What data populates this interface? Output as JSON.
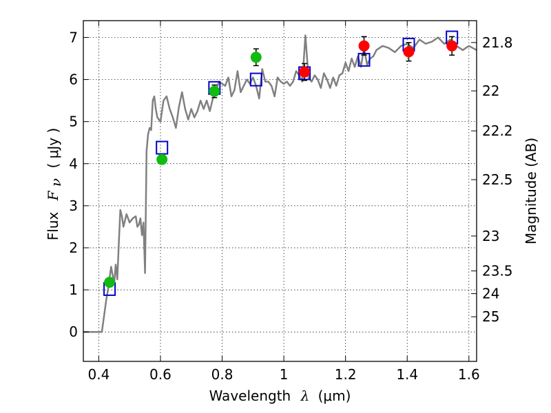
{
  "chart_data": {
    "type": "scatter",
    "xlabel": {
      "text": "Wavelength",
      "symbol": "λ",
      "unit": "(μm)"
    },
    "ylabel": {
      "text": "Flux",
      "symbol": "F",
      "subscript": "ν",
      "unit": "( μJy )"
    },
    "y2label": "Magnitude (AB)",
    "xlim": [
      0.35,
      1.625
    ],
    "ylim": [
      -0.7,
      7.4
    ],
    "xticks": [
      0.4,
      0.6,
      0.8,
      1,
      1.2,
      1.4,
      1.6
    ],
    "xtick_labels": [
      "0.4",
      "0.6",
      "0.8",
      "1",
      "1.2",
      "1.4",
      "1.6"
    ],
    "yticks": [
      0,
      1,
      2,
      3,
      4,
      5,
      6,
      7
    ],
    "ytick_labels": [
      "0",
      "1",
      "2",
      "3",
      "4",
      "5",
      "6",
      "7"
    ],
    "y2ticks": [
      {
        "label": "21.8",
        "flux": 6.88
      },
      {
        "label": "22",
        "flux": 5.73
      },
      {
        "label": "22.2",
        "flux": 4.78
      },
      {
        "label": "22.5",
        "flux": 3.62
      },
      {
        "label": "23",
        "flux": 2.28
      },
      {
        "label": "23.5",
        "flux": 1.45
      },
      {
        "label": "24",
        "flux": 0.91
      },
      {
        "label": "25",
        "flux": 0.36
      }
    ],
    "grid": true,
    "colors": {
      "model": "#808080",
      "green": "#11bb11",
      "red": "#ff0000",
      "box": "#0000cc",
      "errorbar": "#000000"
    },
    "series": [
      {
        "style": "line",
        "x": [
          0.35,
          0.41,
          0.425,
          0.43,
          0.44,
          0.45,
          0.455,
          0.46,
          0.465,
          0.47,
          0.475,
          0.48,
          0.49,
          0.5,
          0.51,
          0.52,
          0.525,
          0.53,
          0.535,
          0.54,
          0.545,
          0.55,
          0.555,
          0.56,
          0.565,
          0.57,
          0.575,
          0.58,
          0.585,
          0.59,
          0.6,
          0.61,
          0.62,
          0.63,
          0.64,
          0.65,
          0.66,
          0.67,
          0.68,
          0.69,
          0.7,
          0.71,
          0.72,
          0.73,
          0.74,
          0.75,
          0.76,
          0.77,
          0.78,
          0.79,
          0.8,
          0.81,
          0.82,
          0.83,
          0.84,
          0.85,
          0.86,
          0.87,
          0.88,
          0.89,
          0.9,
          0.91,
          0.92,
          0.93,
          0.94,
          0.95,
          0.96,
          0.97,
          0.98,
          0.99,
          1.0,
          1.01,
          1.02,
          1.03,
          1.04,
          1.05,
          1.06,
          1.07,
          1.08,
          1.09,
          1.1,
          1.11,
          1.12,
          1.13,
          1.14,
          1.15,
          1.16,
          1.17,
          1.18,
          1.19,
          1.2,
          1.21,
          1.22,
          1.23,
          1.24,
          1.25,
          1.26,
          1.27,
          1.28,
          1.29,
          1.3,
          1.32,
          1.34,
          1.36,
          1.38,
          1.4,
          1.42,
          1.44,
          1.46,
          1.48,
          1.5,
          1.52,
          1.54,
          1.56,
          1.58,
          1.6,
          1.625
        ],
        "y": [
          0,
          0,
          0.8,
          1.0,
          1.55,
          1.15,
          1.6,
          1.25,
          2.1,
          2.9,
          2.75,
          2.5,
          2.8,
          2.6,
          2.7,
          2.75,
          2.5,
          2.55,
          2.7,
          2.3,
          2.6,
          1.4,
          4.3,
          4.7,
          4.85,
          4.8,
          5.5,
          5.6,
          5.3,
          5.1,
          5.0,
          5.5,
          5.6,
          5.3,
          5.1,
          4.85,
          5.35,
          5.7,
          5.3,
          5.05,
          5.3,
          5.1,
          5.25,
          5.5,
          5.3,
          5.5,
          5.25,
          5.55,
          5.75,
          5.95,
          5.9,
          5.85,
          6.05,
          5.6,
          5.75,
          6.2,
          5.7,
          5.85,
          6.0,
          5.9,
          6.05,
          5.85,
          5.55,
          6.25,
          5.95,
          5.95,
          5.85,
          5.6,
          6.05,
          5.95,
          5.9,
          5.95,
          5.85,
          5.95,
          6.2,
          6.1,
          5.95,
          7.05,
          6.05,
          5.95,
          6.1,
          6.0,
          5.8,
          6.15,
          6.0,
          5.8,
          6.05,
          5.85,
          6.1,
          6.15,
          6.4,
          6.2,
          6.5,
          6.3,
          6.55,
          6.3,
          6.75,
          6.35,
          6.5,
          6.55,
          6.7,
          6.8,
          6.75,
          6.65,
          6.8,
          6.85,
          6.75,
          6.95,
          6.85,
          6.9,
          7.0,
          6.85,
          6.95,
          6.8,
          6.7,
          6.8,
          6.7
        ]
      },
      {
        "style": "points-green",
        "x": [
          0.435,
          0.605,
          0.775,
          0.91
        ],
        "y": [
          1.18,
          4.1,
          5.72,
          6.53
        ],
        "err": [
          0.08,
          0.1,
          0.15,
          0.2
        ]
      },
      {
        "style": "points-red",
        "x": [
          1.067,
          1.26,
          1.405,
          1.545
        ],
        "y": [
          6.18,
          6.8,
          6.66,
          6.8
        ],
        "err": [
          0.2,
          0.22,
          0.22,
          0.22
        ]
      },
      {
        "style": "squares-blue",
        "x": [
          0.435,
          0.605,
          0.775,
          0.91,
          1.067,
          1.26,
          1.405,
          1.545
        ],
        "y": [
          1.02,
          4.38,
          5.8,
          6.0,
          6.15,
          6.47,
          6.83,
          7.0
        ]
      }
    ]
  }
}
